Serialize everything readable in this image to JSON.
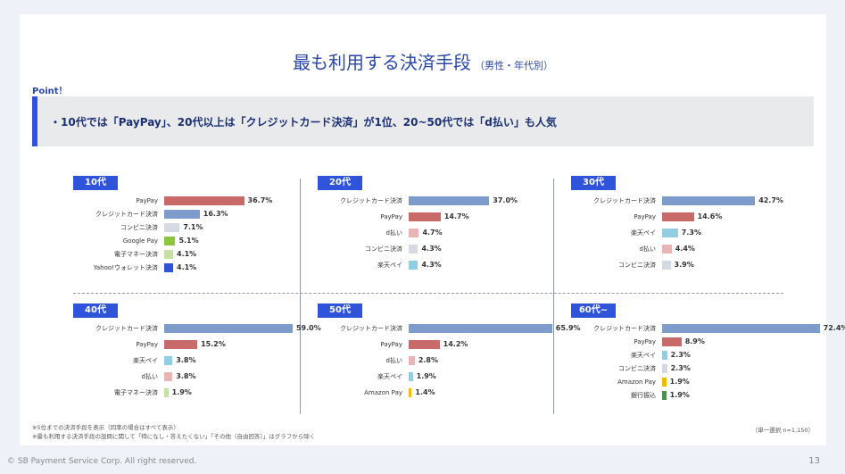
{
  "title": {
    "main": "最も利用する決済手段",
    "sub": "（男性・年代別）"
  },
  "point": {
    "label": "Point！",
    "text": "・10代では「PayPay」、20代以上は「クレジットカード決済」が1位、20~50代では「d払い」も人気"
  },
  "colors": {
    "クレジットカード決済": "#7d9ccb",
    "PayPay": "#c96a6a",
    "コンビニ決済": "#d5d9e2",
    "Google Pay": "#8cc63f",
    "電子マネー決済": "#c6dfa5",
    "Yahoo!ウォレット決済": "#2f53d9",
    "d払い": "#e8b4b4",
    "楽天ペイ": "#92cde2",
    "Amazon Pay": "#f5b800",
    "銀行振込": "#4e8f4e"
  },
  "chart_data": [
    {
      "type": "bar",
      "title": "10代",
      "value_suffix": "%",
      "categories": [
        "PayPay",
        "クレジットカード決済",
        "コンビニ決済",
        "Google Pay",
        "電子マネー決済",
        "Yahoo!ウォレット決済"
      ],
      "values": [
        36.7,
        16.3,
        7.1,
        5.1,
        4.1,
        4.1
      ]
    },
    {
      "type": "bar",
      "title": "20代",
      "value_suffix": "%",
      "categories": [
        "クレジットカード決済",
        "PayPay",
        "d払い",
        "コンビニ決済",
        "楽天ペイ"
      ],
      "values": [
        37.0,
        14.7,
        4.7,
        4.3,
        4.3
      ]
    },
    {
      "type": "bar",
      "title": "30代",
      "value_suffix": "%",
      "categories": [
        "クレジットカード決済",
        "PayPay",
        "楽天ペイ",
        "d払い",
        "コンビニ決済"
      ],
      "values": [
        42.7,
        14.6,
        7.3,
        4.4,
        3.9
      ]
    },
    {
      "type": "bar",
      "title": "40代",
      "value_suffix": "%",
      "categories": [
        "クレジットカード決済",
        "PayPay",
        "楽天ペイ",
        "d払い",
        "電子マネー決済"
      ],
      "values": [
        59.0,
        15.2,
        3.8,
        3.8,
        1.9
      ]
    },
    {
      "type": "bar",
      "title": "50代",
      "value_suffix": "%",
      "categories": [
        "クレジットカード決済",
        "PayPay",
        "d払い",
        "楽天ペイ",
        "Amazon Pay"
      ],
      "values": [
        65.9,
        14.2,
        2.8,
        1.9,
        1.4
      ]
    },
    {
      "type": "bar",
      "title": "60代~",
      "value_suffix": "%",
      "categories": [
        "クレジットカード決済",
        "PayPay",
        "楽天ペイ",
        "コンビニ決済",
        "Amazon Pay",
        "銀行振込"
      ],
      "values": [
        72.4,
        8.9,
        2.3,
        2.3,
        1.9,
        1.9
      ]
    }
  ],
  "footnotes": [
    "※5位までの決済手段を表示（同率の場合はすべて表示）",
    "※最も利用する決済手段の設問に関して「特になし・答えたくない」「その他（自由回答）」はグラフから除く"
  ],
  "sample": "（単一選択 n=1,150）",
  "copyright": "© SB Payment Service Corp. All right reserved.",
  "page_number": "13"
}
